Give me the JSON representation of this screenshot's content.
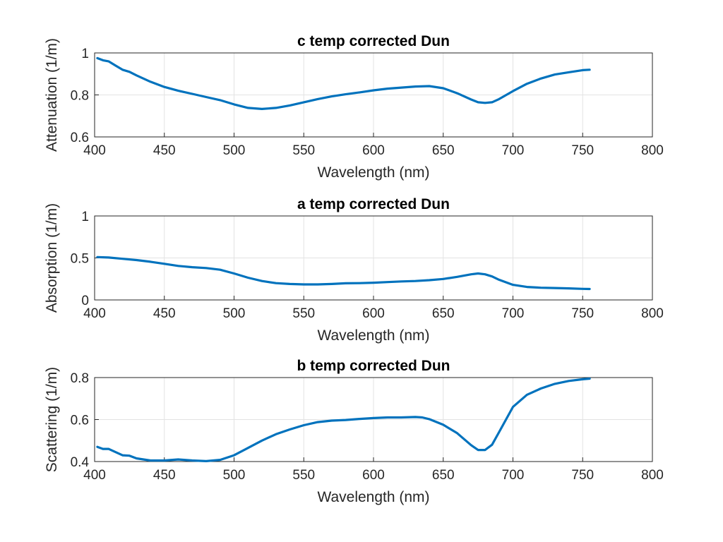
{
  "colors": {
    "series": "#0072bd"
  },
  "chart_data": [
    {
      "type": "line",
      "title": "c temp corrected Dun",
      "xlabel": "Wavelength (nm)",
      "ylabel": "Attenuation (1/m)",
      "xlim": [
        400,
        800
      ],
      "ylim": [
        0.6,
        1
      ],
      "xticks": [
        "400",
        "450",
        "500",
        "550",
        "600",
        "650",
        "700",
        "750",
        "800"
      ],
      "yticks": [
        "0.6",
        "0.8",
        "1"
      ],
      "grid": true,
      "series": [
        {
          "x": [
            402,
            406,
            410,
            415,
            420,
            425,
            430,
            440,
            450,
            460,
            470,
            480,
            490,
            500,
            510,
            520,
            530,
            540,
            550,
            560,
            570,
            580,
            590,
            600,
            610,
            620,
            630,
            640,
            650,
            660,
            670,
            675,
            680,
            685,
            690,
            700,
            710,
            720,
            730,
            740,
            745,
            750,
            755
          ],
          "y": [
            0.975,
            0.965,
            0.96,
            0.94,
            0.92,
            0.91,
            0.893,
            0.863,
            0.838,
            0.82,
            0.805,
            0.79,
            0.775,
            0.755,
            0.738,
            0.733,
            0.738,
            0.75,
            0.765,
            0.78,
            0.793,
            0.803,
            0.812,
            0.822,
            0.83,
            0.835,
            0.84,
            0.842,
            0.832,
            0.808,
            0.778,
            0.765,
            0.762,
            0.765,
            0.78,
            0.818,
            0.853,
            0.878,
            0.897,
            0.908,
            0.913,
            0.918,
            0.92
          ]
        }
      ]
    },
    {
      "type": "line",
      "title": "a temp corrected Dun",
      "xlabel": "Wavelength (nm)",
      "ylabel": "Absorption (1/m)",
      "xlim": [
        400,
        800
      ],
      "ylim": [
        0,
        1
      ],
      "xticks": [
        "400",
        "450",
        "500",
        "550",
        "600",
        "650",
        "700",
        "750",
        "800"
      ],
      "yticks": [
        "0",
        "0.5",
        "1"
      ],
      "grid": true,
      "series": [
        {
          "x": [
            402,
            410,
            420,
            430,
            440,
            450,
            460,
            470,
            480,
            490,
            500,
            510,
            520,
            530,
            540,
            550,
            560,
            570,
            580,
            590,
            600,
            610,
            620,
            630,
            640,
            650,
            660,
            670,
            675,
            680,
            685,
            690,
            700,
            710,
            720,
            730,
            740,
            750,
            755
          ],
          "y": [
            0.51,
            0.505,
            0.49,
            0.475,
            0.455,
            0.43,
            0.405,
            0.39,
            0.38,
            0.36,
            0.315,
            0.265,
            0.225,
            0.2,
            0.19,
            0.185,
            0.185,
            0.19,
            0.198,
            0.2,
            0.205,
            0.213,
            0.22,
            0.225,
            0.235,
            0.25,
            0.275,
            0.305,
            0.315,
            0.305,
            0.28,
            0.24,
            0.18,
            0.155,
            0.145,
            0.142,
            0.138,
            0.132,
            0.13
          ]
        }
      ]
    },
    {
      "type": "line",
      "title": "b temp corrected Dun",
      "xlabel": "Wavelength (nm)",
      "ylabel": "Scattering (1/m)",
      "xlim": [
        400,
        800
      ],
      "ylim": [
        0.4,
        0.8
      ],
      "xticks": [
        "400",
        "450",
        "500",
        "550",
        "600",
        "650",
        "700",
        "750",
        "800"
      ],
      "yticks": [
        "0.4",
        "0.6",
        "0.8"
      ],
      "grid": true,
      "series": [
        {
          "x": [
            402,
            406,
            410,
            415,
            420,
            425,
            430,
            440,
            450,
            460,
            470,
            480,
            490,
            500,
            510,
            520,
            530,
            540,
            550,
            560,
            570,
            580,
            590,
            600,
            610,
            620,
            630,
            635,
            640,
            650,
            660,
            670,
            675,
            680,
            685,
            690,
            700,
            710,
            720,
            730,
            740,
            750,
            755
          ],
          "y": [
            0.47,
            0.46,
            0.46,
            0.445,
            0.43,
            0.428,
            0.415,
            0.405,
            0.405,
            0.41,
            0.405,
            0.402,
            0.408,
            0.43,
            0.465,
            0.5,
            0.53,
            0.553,
            0.573,
            0.588,
            0.595,
            0.598,
            0.603,
            0.607,
            0.61,
            0.61,
            0.612,
            0.61,
            0.602,
            0.575,
            0.535,
            0.478,
            0.455,
            0.455,
            0.48,
            0.54,
            0.66,
            0.718,
            0.748,
            0.77,
            0.784,
            0.792,
            0.795
          ]
        }
      ]
    }
  ]
}
